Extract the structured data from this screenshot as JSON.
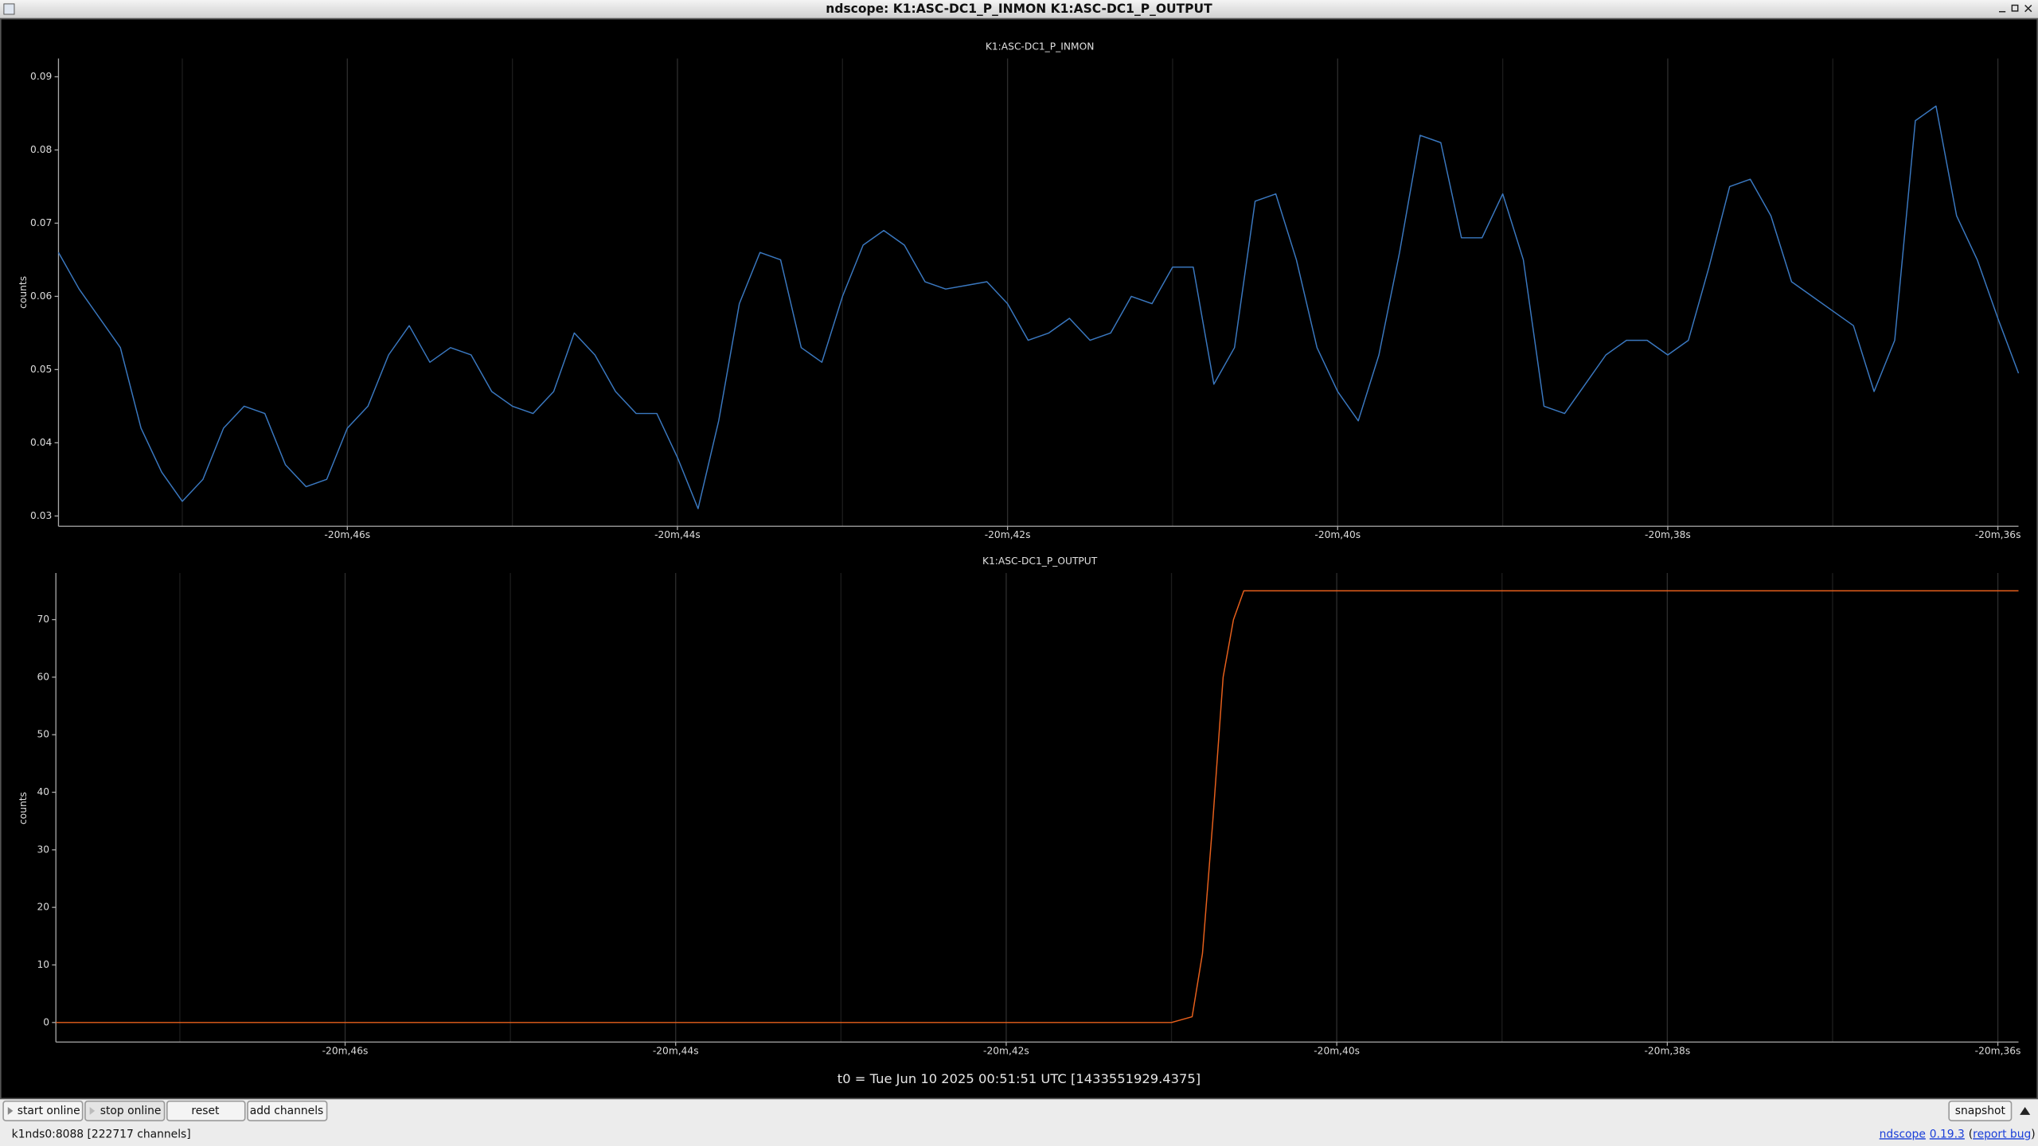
{
  "window": {
    "title": "ndscope: K1:ASC-DC1_P_INMON K1:ASC-DC1_P_OUTPUT"
  },
  "chart_data": [
    {
      "type": "line",
      "title": "K1:ASC-DC1_P_INMON",
      "y_label": "counts",
      "color": "#3a78c0",
      "grid": "x",
      "x": [
        -1247.75,
        -1247.625,
        -1247.5,
        -1247.375,
        -1247.25,
        -1247.125,
        -1247,
        -1246.875,
        -1246.75,
        -1246.625,
        -1246.5,
        -1246.375,
        -1246.25,
        -1246.125,
        -1246,
        -1245.875,
        -1245.75,
        -1245.625,
        -1245.5,
        -1245.375,
        -1245.25,
        -1245.125,
        -1245,
        -1244.875,
        -1244.75,
        -1244.625,
        -1244.5,
        -1244.375,
        -1244.25,
        -1244.125,
        -1244,
        -1243.875,
        -1243.75,
        -1243.625,
        -1243.5,
        -1243.375,
        -1243.25,
        -1243.125,
        -1243,
        -1242.875,
        -1242.75,
        -1242.625,
        -1242.5,
        -1242.375,
        -1242.25,
        -1242.125,
        -1242,
        -1241.875,
        -1241.75,
        -1241.625,
        -1241.5,
        -1241.375,
        -1241.25,
        -1241.125,
        -1241,
        -1240.875,
        -1240.75,
        -1240.625,
        -1240.5,
        -1240.375,
        -1240.25,
        -1240.125,
        -1240,
        -1239.875,
        -1239.75,
        -1239.625,
        -1239.5,
        -1239.375,
        -1239.25,
        -1239.125,
        -1239,
        -1238.875,
        -1238.75,
        -1238.625,
        -1238.5,
        -1238.375,
        -1238.25,
        -1238.125,
        -1238,
        -1237.875,
        -1237.75,
        -1237.625,
        -1237.5,
        -1237.375,
        -1237.25,
        -1237.125,
        -1237,
        -1236.875,
        -1236.75,
        -1236.625,
        -1236.5,
        -1236.375,
        -1236.25,
        -1236.125,
        -1236,
        -1235.875
      ],
      "values": [
        0.066,
        0.061,
        0.057,
        0.053,
        0.042,
        0.036,
        0.032,
        0.035,
        0.042,
        0.045,
        0.044,
        0.037,
        0.034,
        0.035,
        0.042,
        0.045,
        0.052,
        0.056,
        0.051,
        0.053,
        0.052,
        0.047,
        0.045,
        0.044,
        0.047,
        0.055,
        0.052,
        0.047,
        0.044,
        0.044,
        0.038,
        0.031,
        0.043,
        0.059,
        0.066,
        0.065,
        0.053,
        0.051,
        0.06,
        0.067,
        0.069,
        0.067,
        0.062,
        0.061,
        0.0615,
        0.062,
        0.059,
        0.054,
        0.055,
        0.057,
        0.054,
        0.055,
        0.06,
        0.059,
        0.064,
        0.064,
        0.048,
        0.053,
        0.073,
        0.074,
        0.065,
        0.053,
        0.047,
        0.043,
        0.052,
        0.066,
        0.082,
        0.081,
        0.068,
        0.068,
        0.074,
        0.065,
        0.045,
        0.044,
        0.048,
        0.052,
        0.054,
        0.054,
        0.052,
        0.054,
        0.064,
        0.075,
        0.076,
        0.071,
        0.062,
        0.06,
        0.058,
        0.056,
        0.047,
        0.054,
        0.084,
        0.086,
        0.071,
        0.065,
        0.057,
        0.0495
      ],
      "xlim": [
        -1247.75,
        -1235.875
      ],
      "xticks": [
        {
          "value": -1246,
          "label": "-20m,46s"
        },
        {
          "value": -1244,
          "label": "-20m,44s"
        },
        {
          "value": -1242,
          "label": "-20m,42s"
        },
        {
          "value": -1240,
          "label": "-20m,40s"
        },
        {
          "value": -1238,
          "label": "-20m,38s"
        },
        {
          "value": -1236,
          "label": "-20m,36s"
        }
      ],
      "x_minor_ticks": [
        -1247,
        -1245,
        -1243,
        -1241,
        -1239,
        -1237
      ],
      "ylim": [
        0.0286,
        0.0925
      ],
      "yticks": [
        0.03,
        0.04,
        0.05,
        0.06,
        0.07,
        0.08,
        0.09
      ]
    },
    {
      "type": "line",
      "title": "K1:ASC-DC1_P_OUTPUT",
      "y_label": "counts",
      "color": "#e8601c",
      "grid": "x",
      "x": [
        -1247.75,
        -1241.0,
        -1240.875,
        -1240.8125,
        -1240.75,
        -1240.6875,
        -1240.625,
        -1240.5625,
        -1235.875
      ],
      "values": [
        0,
        0,
        1,
        12,
        35,
        60,
        70,
        75,
        75
      ],
      "xlim": [
        -1247.75,
        -1235.875
      ],
      "xticks": [
        {
          "value": -1246,
          "label": "-20m,46s"
        },
        {
          "value": -1244,
          "label": "-20m,44s"
        },
        {
          "value": -1242,
          "label": "-20m,42s"
        },
        {
          "value": -1240,
          "label": "-20m,40s"
        },
        {
          "value": -1238,
          "label": "-20m,38s"
        },
        {
          "value": -1236,
          "label": "-20m,36s"
        }
      ],
      "x_minor_ticks": [
        -1247,
        -1245,
        -1243,
        -1241,
        -1239,
        -1237
      ],
      "ylim": [
        -3.4,
        78.1
      ],
      "yticks": [
        0,
        10,
        20,
        30,
        40,
        50,
        60,
        70
      ]
    }
  ],
  "t0_label": "t0 = Tue Jun 10 2025 00:51:51 UTC [1433551929.4375]",
  "toolbar": {
    "buttons": [
      "start online",
      "stop online",
      "reset",
      "add channels"
    ],
    "snapshot": "snapshot"
  },
  "status": {
    "connection": "k1nds0:8088 [222717 channels]",
    "about": [
      "ndscope",
      "0.19.3",
      "(",
      "report bug",
      ")"
    ]
  }
}
